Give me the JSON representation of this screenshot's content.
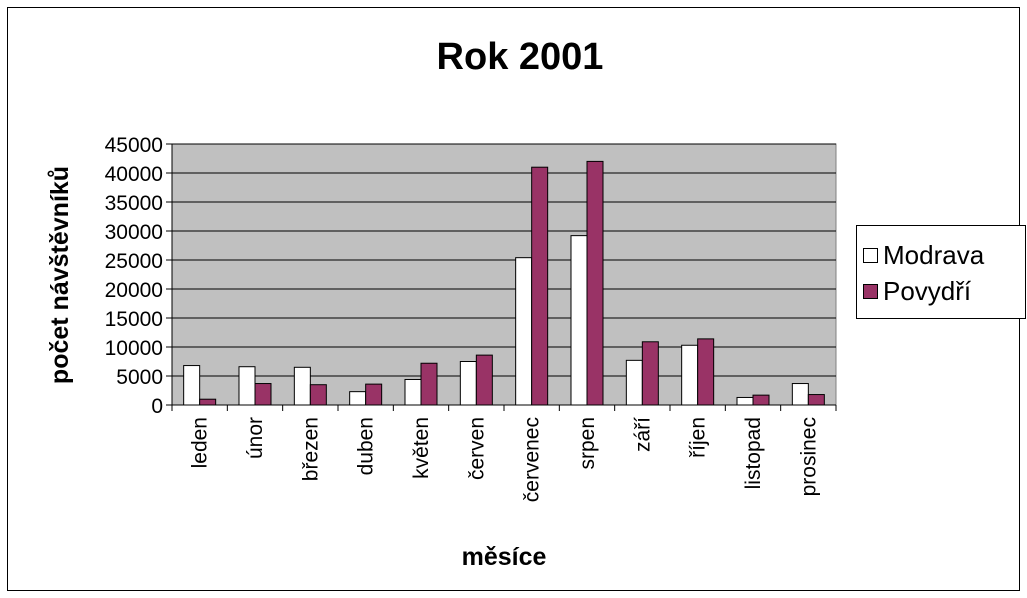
{
  "chart_data": {
    "type": "bar",
    "title": "Rok 2001",
    "xlabel": "měsíce",
    "ylabel": "počet návštěvníků",
    "ylim": [
      0,
      45000
    ],
    "yticks": [
      0,
      5000,
      10000,
      15000,
      20000,
      25000,
      30000,
      35000,
      40000,
      45000
    ],
    "grid": true,
    "legend": "right",
    "categories": [
      "leden",
      "únor",
      "březen",
      "duben",
      "květen",
      "červen",
      "červenec",
      "srpen",
      "září",
      "říjen",
      "listopad",
      "prosinec"
    ],
    "series": [
      {
        "name": "Modrava",
        "color": "#ffffff",
        "values": [
          6800,
          6600,
          6500,
          2300,
          4400,
          7500,
          25400,
          29200,
          7700,
          10300,
          1300,
          3700
        ]
      },
      {
        "name": "Povydří",
        "color": "#993366",
        "values": [
          1000,
          3700,
          3500,
          3600,
          7200,
          8600,
          41000,
          42000,
          10900,
          11400,
          1700,
          1800
        ]
      }
    ],
    "plot_background": "#c0c0c0"
  }
}
